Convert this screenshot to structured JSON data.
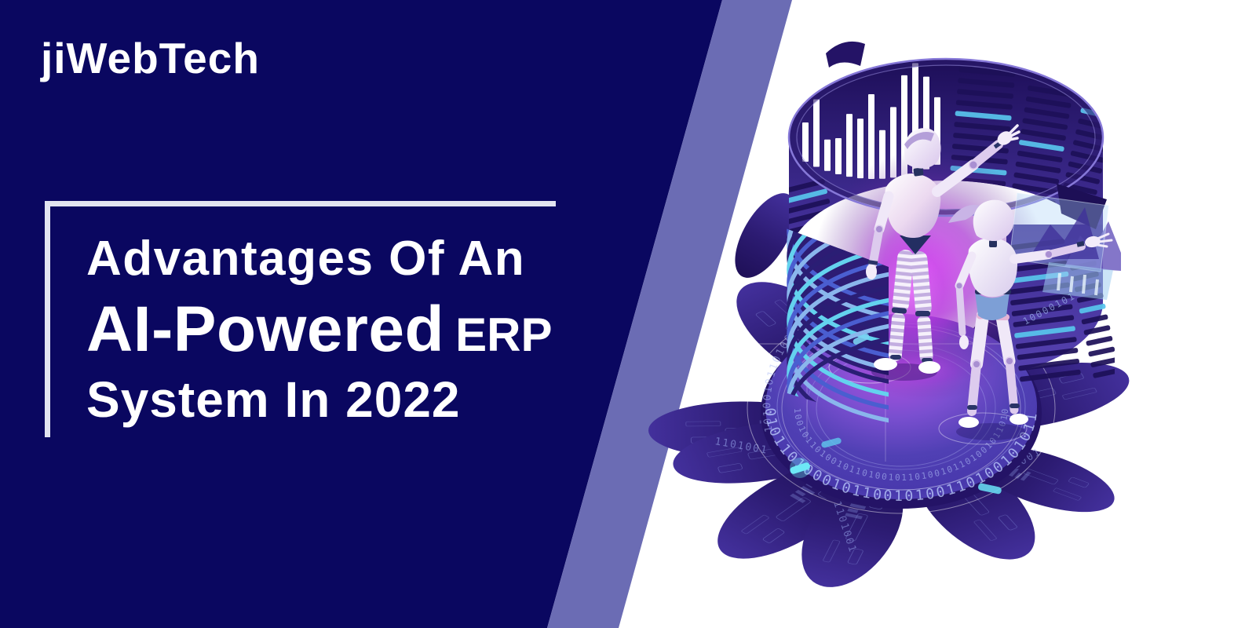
{
  "brand": {
    "logo_text": "jiWebTech"
  },
  "hero": {
    "line1": "Advantages Of An",
    "line2_main": "AI-Powered",
    "line2_suffix": "ERP",
    "line3": "System In 2022"
  },
  "colors": {
    "navy_panel": "#0a0760",
    "stripe_periwinkle": "#6b6cb4",
    "rule_line": "#e2e4f1",
    "title_text": "#ffffff",
    "background": "#ffffff",
    "indigo_dark": "#241366",
    "indigo": "#2f1c7a",
    "purple_mid": "#5a43ae",
    "blue": "#4a5ed0",
    "light_blue": "#8ab6ec",
    "cyan_accent": "#64d2ee",
    "magenta_glow": "#c936e8",
    "robot_white": "#ffffff",
    "robot_lavender": "#cdbae6",
    "joint_navy": "#26315f",
    "shorts_blue": "#7d9fd6"
  },
  "illustration": {
    "name": "ai-robots-on-binary-data-platform",
    "equalizer_bars": [
      50,
      86,
      40,
      46,
      80,
      76,
      108,
      62,
      90,
      128,
      140,
      118,
      86
    ],
    "binary": {
      "ring_a": "01011010001011001010011010010101101000101",
      "ring_b": "1001011010010110100101101001011010010110100101",
      "ring_c": "10100101101001011010",
      "petal": "1101001",
      "wall": "10000101"
    }
  }
}
